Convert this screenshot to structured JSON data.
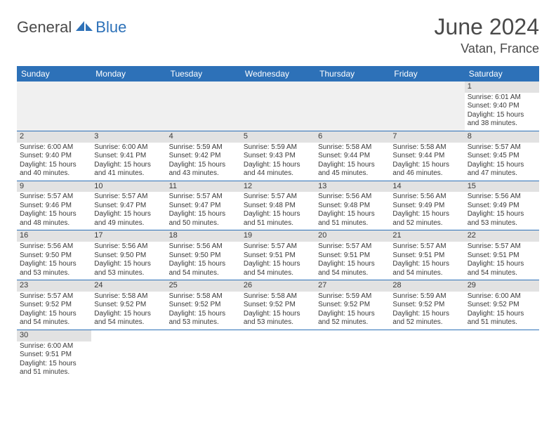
{
  "logo": {
    "general": "General",
    "blue": "Blue"
  },
  "title": "June 2024",
  "location": "Vatan, France",
  "day_headers": [
    "Sunday",
    "Monday",
    "Tuesday",
    "Wednesday",
    "Thursday",
    "Friday",
    "Saturday"
  ],
  "colors": {
    "header_bg": "#2d71b8",
    "header_text": "#ffffff",
    "num_row_bg": "#e2e2e2",
    "empty_bg": "#f0f0f0",
    "text": "#3a3a3a",
    "logo_gray": "#4a4a4a",
    "logo_blue": "#2d71b8",
    "border": "#2d71b8"
  },
  "fonts": {
    "title_size": 32,
    "location_size": 18,
    "logo_size": 22,
    "header_size": 12,
    "daynum_size": 11,
    "body_size": 10
  },
  "weeks": [
    [
      null,
      null,
      null,
      null,
      null,
      null,
      {
        "n": "1",
        "sunrise": "Sunrise: 6:01 AM",
        "sunset": "Sunset: 9:40 PM",
        "daylight": "Daylight: 15 hours and 38 minutes."
      }
    ],
    [
      {
        "n": "2",
        "sunrise": "Sunrise: 6:00 AM",
        "sunset": "Sunset: 9:40 PM",
        "daylight": "Daylight: 15 hours and 40 minutes."
      },
      {
        "n": "3",
        "sunrise": "Sunrise: 6:00 AM",
        "sunset": "Sunset: 9:41 PM",
        "daylight": "Daylight: 15 hours and 41 minutes."
      },
      {
        "n": "4",
        "sunrise": "Sunrise: 5:59 AM",
        "sunset": "Sunset: 9:42 PM",
        "daylight": "Daylight: 15 hours and 43 minutes."
      },
      {
        "n": "5",
        "sunrise": "Sunrise: 5:59 AM",
        "sunset": "Sunset: 9:43 PM",
        "daylight": "Daylight: 15 hours and 44 minutes."
      },
      {
        "n": "6",
        "sunrise": "Sunrise: 5:58 AM",
        "sunset": "Sunset: 9:44 PM",
        "daylight": "Daylight: 15 hours and 45 minutes."
      },
      {
        "n": "7",
        "sunrise": "Sunrise: 5:58 AM",
        "sunset": "Sunset: 9:44 PM",
        "daylight": "Daylight: 15 hours and 46 minutes."
      },
      {
        "n": "8",
        "sunrise": "Sunrise: 5:57 AM",
        "sunset": "Sunset: 9:45 PM",
        "daylight": "Daylight: 15 hours and 47 minutes."
      }
    ],
    [
      {
        "n": "9",
        "sunrise": "Sunrise: 5:57 AM",
        "sunset": "Sunset: 9:46 PM",
        "daylight": "Daylight: 15 hours and 48 minutes."
      },
      {
        "n": "10",
        "sunrise": "Sunrise: 5:57 AM",
        "sunset": "Sunset: 9:47 PM",
        "daylight": "Daylight: 15 hours and 49 minutes."
      },
      {
        "n": "11",
        "sunrise": "Sunrise: 5:57 AM",
        "sunset": "Sunset: 9:47 PM",
        "daylight": "Daylight: 15 hours and 50 minutes."
      },
      {
        "n": "12",
        "sunrise": "Sunrise: 5:57 AM",
        "sunset": "Sunset: 9:48 PM",
        "daylight": "Daylight: 15 hours and 51 minutes."
      },
      {
        "n": "13",
        "sunrise": "Sunrise: 5:56 AM",
        "sunset": "Sunset: 9:48 PM",
        "daylight": "Daylight: 15 hours and 51 minutes."
      },
      {
        "n": "14",
        "sunrise": "Sunrise: 5:56 AM",
        "sunset": "Sunset: 9:49 PM",
        "daylight": "Daylight: 15 hours and 52 minutes."
      },
      {
        "n": "15",
        "sunrise": "Sunrise: 5:56 AM",
        "sunset": "Sunset: 9:49 PM",
        "daylight": "Daylight: 15 hours and 53 minutes."
      }
    ],
    [
      {
        "n": "16",
        "sunrise": "Sunrise: 5:56 AM",
        "sunset": "Sunset: 9:50 PM",
        "daylight": "Daylight: 15 hours and 53 minutes."
      },
      {
        "n": "17",
        "sunrise": "Sunrise: 5:56 AM",
        "sunset": "Sunset: 9:50 PM",
        "daylight": "Daylight: 15 hours and 53 minutes."
      },
      {
        "n": "18",
        "sunrise": "Sunrise: 5:56 AM",
        "sunset": "Sunset: 9:50 PM",
        "daylight": "Daylight: 15 hours and 54 minutes."
      },
      {
        "n": "19",
        "sunrise": "Sunrise: 5:57 AM",
        "sunset": "Sunset: 9:51 PM",
        "daylight": "Daylight: 15 hours and 54 minutes."
      },
      {
        "n": "20",
        "sunrise": "Sunrise: 5:57 AM",
        "sunset": "Sunset: 9:51 PM",
        "daylight": "Daylight: 15 hours and 54 minutes."
      },
      {
        "n": "21",
        "sunrise": "Sunrise: 5:57 AM",
        "sunset": "Sunset: 9:51 PM",
        "daylight": "Daylight: 15 hours and 54 minutes."
      },
      {
        "n": "22",
        "sunrise": "Sunrise: 5:57 AM",
        "sunset": "Sunset: 9:51 PM",
        "daylight": "Daylight: 15 hours and 54 minutes."
      }
    ],
    [
      {
        "n": "23",
        "sunrise": "Sunrise: 5:57 AM",
        "sunset": "Sunset: 9:52 PM",
        "daylight": "Daylight: 15 hours and 54 minutes."
      },
      {
        "n": "24",
        "sunrise": "Sunrise: 5:58 AM",
        "sunset": "Sunset: 9:52 PM",
        "daylight": "Daylight: 15 hours and 54 minutes."
      },
      {
        "n": "25",
        "sunrise": "Sunrise: 5:58 AM",
        "sunset": "Sunset: 9:52 PM",
        "daylight": "Daylight: 15 hours and 53 minutes."
      },
      {
        "n": "26",
        "sunrise": "Sunrise: 5:58 AM",
        "sunset": "Sunset: 9:52 PM",
        "daylight": "Daylight: 15 hours and 53 minutes."
      },
      {
        "n": "27",
        "sunrise": "Sunrise: 5:59 AM",
        "sunset": "Sunset: 9:52 PM",
        "daylight": "Daylight: 15 hours and 52 minutes."
      },
      {
        "n": "28",
        "sunrise": "Sunrise: 5:59 AM",
        "sunset": "Sunset: 9:52 PM",
        "daylight": "Daylight: 15 hours and 52 minutes."
      },
      {
        "n": "29",
        "sunrise": "Sunrise: 6:00 AM",
        "sunset": "Sunset: 9:52 PM",
        "daylight": "Daylight: 15 hours and 51 minutes."
      }
    ],
    [
      {
        "n": "30",
        "sunrise": "Sunrise: 6:00 AM",
        "sunset": "Sunset: 9:51 PM",
        "daylight": "Daylight: 15 hours and 51 minutes."
      },
      null,
      null,
      null,
      null,
      null,
      null
    ]
  ]
}
